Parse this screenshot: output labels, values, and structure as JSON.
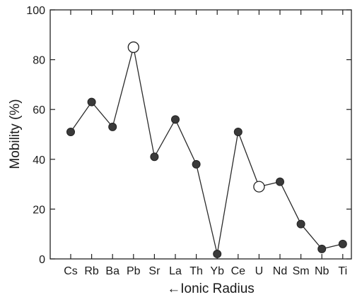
{
  "chart_data": {
    "type": "line",
    "title": "",
    "xlabel": "←Ionic Radius",
    "ylabel": "Mobility (%)",
    "ylim": [
      0,
      100
    ],
    "yticks": [
      0,
      20,
      40,
      60,
      80,
      100
    ],
    "grid": false,
    "categories": [
      "Cs",
      "Rb",
      "Ba",
      "Pb",
      "Sr",
      "La",
      "Th",
      "Yb",
      "Ce",
      "U",
      "Nd",
      "Sm",
      "Nb",
      "Ti"
    ],
    "values": [
      51,
      63,
      53,
      85,
      41,
      56,
      38,
      2,
      51,
      29,
      31,
      14,
      4,
      6
    ],
    "marker_fill": [
      "filled",
      "filled",
      "filled",
      "open",
      "filled",
      "filled",
      "filled",
      "filled",
      "filled",
      "open",
      "filled",
      "filled",
      "filled",
      "filled"
    ],
    "colors": {
      "line": "#2b2b2b",
      "filled_marker": "#3a3a3a",
      "open_marker": "#ffffff"
    }
  }
}
